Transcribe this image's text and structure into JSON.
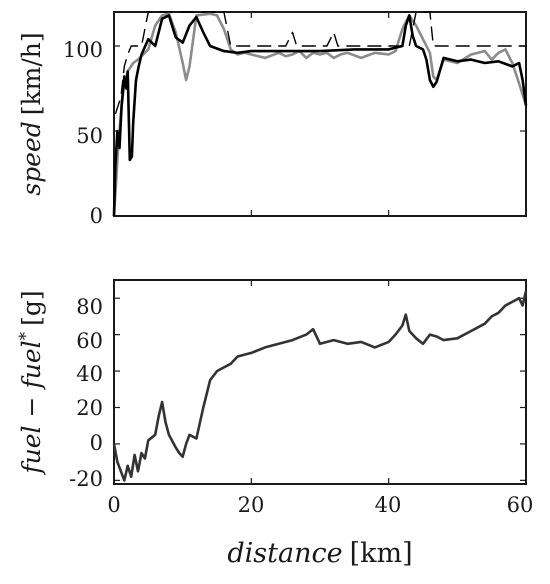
{
  "chart_data": [
    {
      "type": "line",
      "ylabel_var": "speed",
      "ylabel_unit": "[km/h]",
      "xlim": [
        0,
        60
      ],
      "ylim": [
        0,
        120
      ],
      "xticks": [
        0,
        20,
        40,
        60
      ],
      "yticks": [
        0,
        50,
        100
      ],
      "series": [
        {
          "color": "#8c8c8c",
          "dash": "",
          "points": [
            [
              0,
              0
            ],
            [
              0.3,
              20
            ],
            [
              0.6,
              40
            ],
            [
              1.0,
              60
            ],
            [
              1.4,
              75
            ],
            [
              2,
              85
            ],
            [
              2.8,
              90
            ],
            [
              3.5,
              92
            ],
            [
              4,
              94
            ],
            [
              5,
              98
            ],
            [
              6,
              112
            ],
            [
              7,
              118
            ],
            [
              8,
              119
            ],
            [
              9,
              108
            ],
            [
              10,
              90
            ],
            [
              10.5,
              80
            ],
            [
              11,
              88
            ],
            [
              12,
              118
            ],
            [
              14,
              119
            ],
            [
              15,
              118
            ],
            [
              16,
              110
            ],
            [
              17,
              98
            ],
            [
              18,
              95
            ],
            [
              19,
              96
            ],
            [
              20,
              95
            ],
            [
              22,
              93
            ],
            [
              24,
              96
            ],
            [
              25,
              94
            ],
            [
              26,
              95
            ],
            [
              27,
              97
            ],
            [
              28,
              93
            ],
            [
              29,
              96
            ],
            [
              30,
              95
            ],
            [
              31,
              96
            ],
            [
              32,
              93
            ],
            [
              33,
              95
            ],
            [
              34,
              96
            ],
            [
              36,
              93
            ],
            [
              38,
              96
            ],
            [
              40,
              95
            ],
            [
              41,
              97
            ],
            [
              42,
              110
            ],
            [
              43,
              118
            ],
            [
              44,
              112
            ],
            [
              45,
              104
            ],
            [
              46,
              96
            ],
            [
              46.5,
              82
            ],
            [
              47,
              80
            ],
            [
              48,
              92
            ],
            [
              50,
              90
            ],
            [
              52,
              95
            ],
            [
              54,
              97
            ],
            [
              55,
              92
            ],
            [
              56,
              96
            ],
            [
              57,
              98
            ],
            [
              58,
              90
            ],
            [
              59,
              78
            ],
            [
              60,
              65
            ]
          ]
        },
        {
          "color": "#000000",
          "dash": "14,7",
          "points": [
            [
              0.2,
              60
            ],
            [
              1,
              70
            ],
            [
              1.5,
              88
            ],
            [
              2,
              95
            ],
            [
              2.5,
              100
            ],
            [
              3,
              100
            ],
            [
              4,
              100
            ],
            [
              5,
              120
            ],
            [
              16,
              120
            ],
            [
              17,
              100
            ],
            [
              25,
              100
            ],
            [
              26,
              108
            ],
            [
              26.6,
              100
            ],
            [
              31,
              100
            ],
            [
              32,
              108
            ],
            [
              32.6,
              100
            ],
            [
              43,
              100
            ],
            [
              44,
              120
            ],
            [
              46,
              120
            ],
            [
              46.5,
              100
            ],
            [
              60,
              100
            ]
          ]
        },
        {
          "color": "#000000",
          "dash": "",
          "points": [
            [
              0,
              0
            ],
            [
              0.2,
              30
            ],
            [
              0.5,
              50
            ],
            [
              0.8,
              40
            ],
            [
              1.1,
              65
            ],
            [
              1.5,
              82
            ],
            [
              1.8,
              75
            ],
            [
              2,
              85
            ],
            [
              2.3,
              33
            ],
            [
              2.6,
              35
            ],
            [
              2.8,
              55
            ],
            [
              3.2,
              80
            ],
            [
              3.6,
              88
            ],
            [
              4,
              95
            ],
            [
              5,
              104
            ],
            [
              6,
              100
            ],
            [
              7,
              116
            ],
            [
              8,
              118
            ],
            [
              9,
              105
            ],
            [
              10,
              102
            ],
            [
              11,
              112
            ],
            [
              12,
              117
            ],
            [
              13,
              108
            ],
            [
              14,
              100
            ],
            [
              16,
              97
            ],
            [
              18,
              96
            ],
            [
              20,
              97
            ],
            [
              25,
              97
            ],
            [
              30,
              97
            ],
            [
              35,
              98
            ],
            [
              38,
              98
            ],
            [
              40,
              98
            ],
            [
              42,
              100
            ],
            [
              42.5,
              112
            ],
            [
              43,
              118
            ],
            [
              43.5,
              106
            ],
            [
              44,
              100
            ],
            [
              45,
              98
            ],
            [
              45.5,
              92
            ],
            [
              46,
              80
            ],
            [
              46.5,
              76
            ],
            [
              47,
              79
            ],
            [
              48,
              93
            ],
            [
              50,
              91
            ],
            [
              52,
              92
            ],
            [
              54,
              90
            ],
            [
              56,
              91
            ],
            [
              58,
              88
            ],
            [
              59,
              90
            ],
            [
              59.5,
              80
            ],
            [
              60,
              65
            ]
          ]
        }
      ]
    },
    {
      "type": "line",
      "ylabel_unit": "[g]",
      "xlabel_var": "distance",
      "xlabel_unit": "[km]",
      "xlim": [
        0,
        60
      ],
      "ylim": [
        -22,
        90
      ],
      "xticks": [
        0,
        20,
        40,
        60
      ],
      "yticks": [
        -20,
        0,
        20,
        40,
        60,
        80
      ],
      "series": [
        {
          "color": "#333333",
          "dash": "",
          "points": [
            [
              0,
              0
            ],
            [
              0.5,
              -10
            ],
            [
              1,
              -15
            ],
            [
              1.5,
              -20
            ],
            [
              2,
              -12
            ],
            [
              2.5,
              -18
            ],
            [
              3,
              -6
            ],
            [
              3.5,
              -15
            ],
            [
              4,
              -5
            ],
            [
              4.5,
              -8
            ],
            [
              5,
              2
            ],
            [
              6,
              5
            ],
            [
              6.5,
              15
            ],
            [
              7,
              23
            ],
            [
              7.5,
              12
            ],
            [
              8,
              5
            ],
            [
              9,
              -2
            ],
            [
              9.5,
              -5
            ],
            [
              10,
              -7
            ],
            [
              10.5,
              0
            ],
            [
              11,
              5
            ],
            [
              12,
              3
            ],
            [
              13,
              20
            ],
            [
              14,
              35
            ],
            [
              15,
              40
            ],
            [
              16,
              42
            ],
            [
              17,
              44
            ],
            [
              18,
              48
            ],
            [
              20,
              50
            ],
            [
              22,
              53
            ],
            [
              24,
              55
            ],
            [
              26,
              57
            ],
            [
              28,
              60
            ],
            [
              29,
              63
            ],
            [
              30,
              55
            ],
            [
              32,
              57
            ],
            [
              34,
              55
            ],
            [
              36,
              56
            ],
            [
              38,
              53
            ],
            [
              40,
              56
            ],
            [
              41,
              60
            ],
            [
              42,
              65
            ],
            [
              42.5,
              71
            ],
            [
              43,
              62
            ],
            [
              44,
              58
            ],
            [
              45,
              55
            ],
            [
              46,
              60
            ],
            [
              47,
              59
            ],
            [
              48,
              57
            ],
            [
              50,
              58
            ],
            [
              52,
              62
            ],
            [
              54,
              66
            ],
            [
              55,
              70
            ],
            [
              56,
              72
            ],
            [
              57,
              76
            ],
            [
              58,
              78
            ],
            [
              59,
              80
            ],
            [
              59.5,
              76
            ],
            [
              60,
              84
            ]
          ]
        }
      ]
    }
  ]
}
